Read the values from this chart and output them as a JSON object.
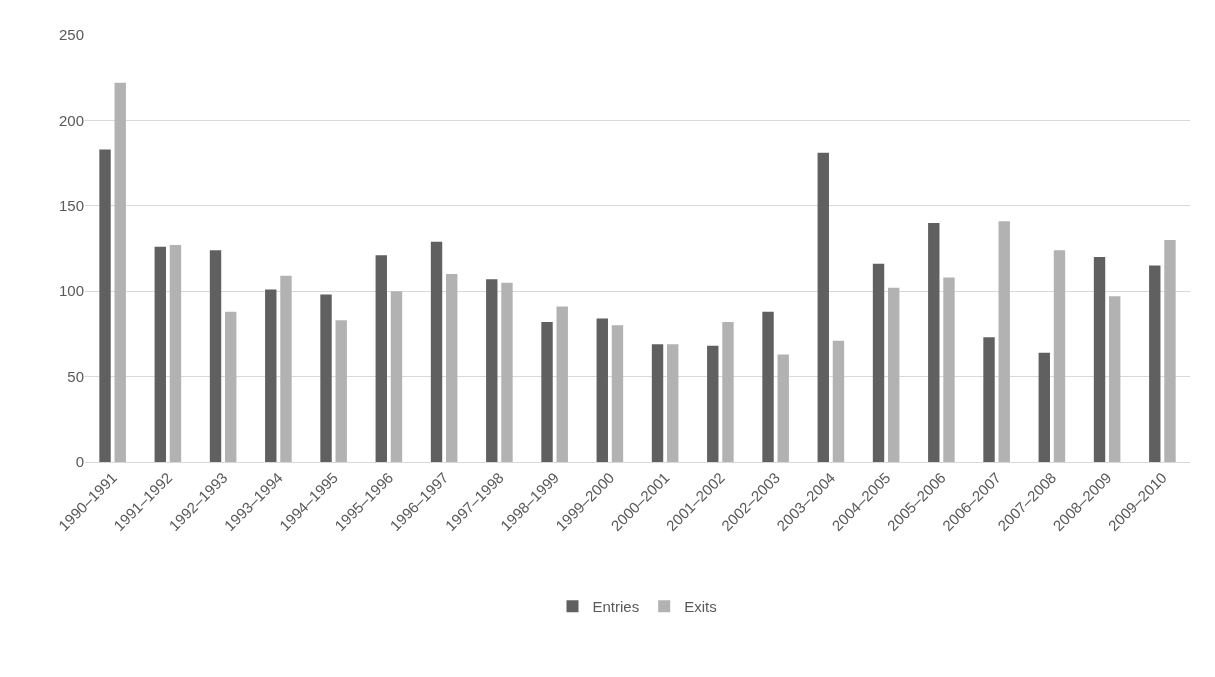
{
  "chart_data": {
    "type": "bar",
    "categories": [
      "1990–1991",
      "1991–1992",
      "1992–1993",
      "1993–1994",
      "1994–1995",
      "1995–1996",
      "1996–1997",
      "1997–1998",
      "1998–1999",
      "1999–2000",
      "2000–2001",
      "2001–2002",
      "2002–2003",
      "2003–2004",
      "2004–2005",
      "2005–2006",
      "2006–2007",
      "2007–2008",
      "2008–2009",
      "2009–2010"
    ],
    "series": [
      {
        "name": "Entries",
        "color": "#606060",
        "values": [
          183,
          126,
          124,
          101,
          98,
          121,
          129,
          107,
          82,
          84,
          69,
          68,
          88,
          181,
          116,
          140,
          73,
          64,
          120,
          115
        ]
      },
      {
        "name": "Exits",
        "color": "#b2b2b2",
        "values": [
          222,
          127,
          88,
          109,
          83,
          100,
          110,
          105,
          91,
          80,
          69,
          82,
          63,
          71,
          102,
          108,
          141,
          124,
          97,
          130
        ]
      }
    ],
    "ylim": [
      0,
      250
    ],
    "yticks": [
      0,
      50,
      100,
      150,
      200,
      250
    ],
    "grid": "y",
    "legend": "bottom"
  }
}
